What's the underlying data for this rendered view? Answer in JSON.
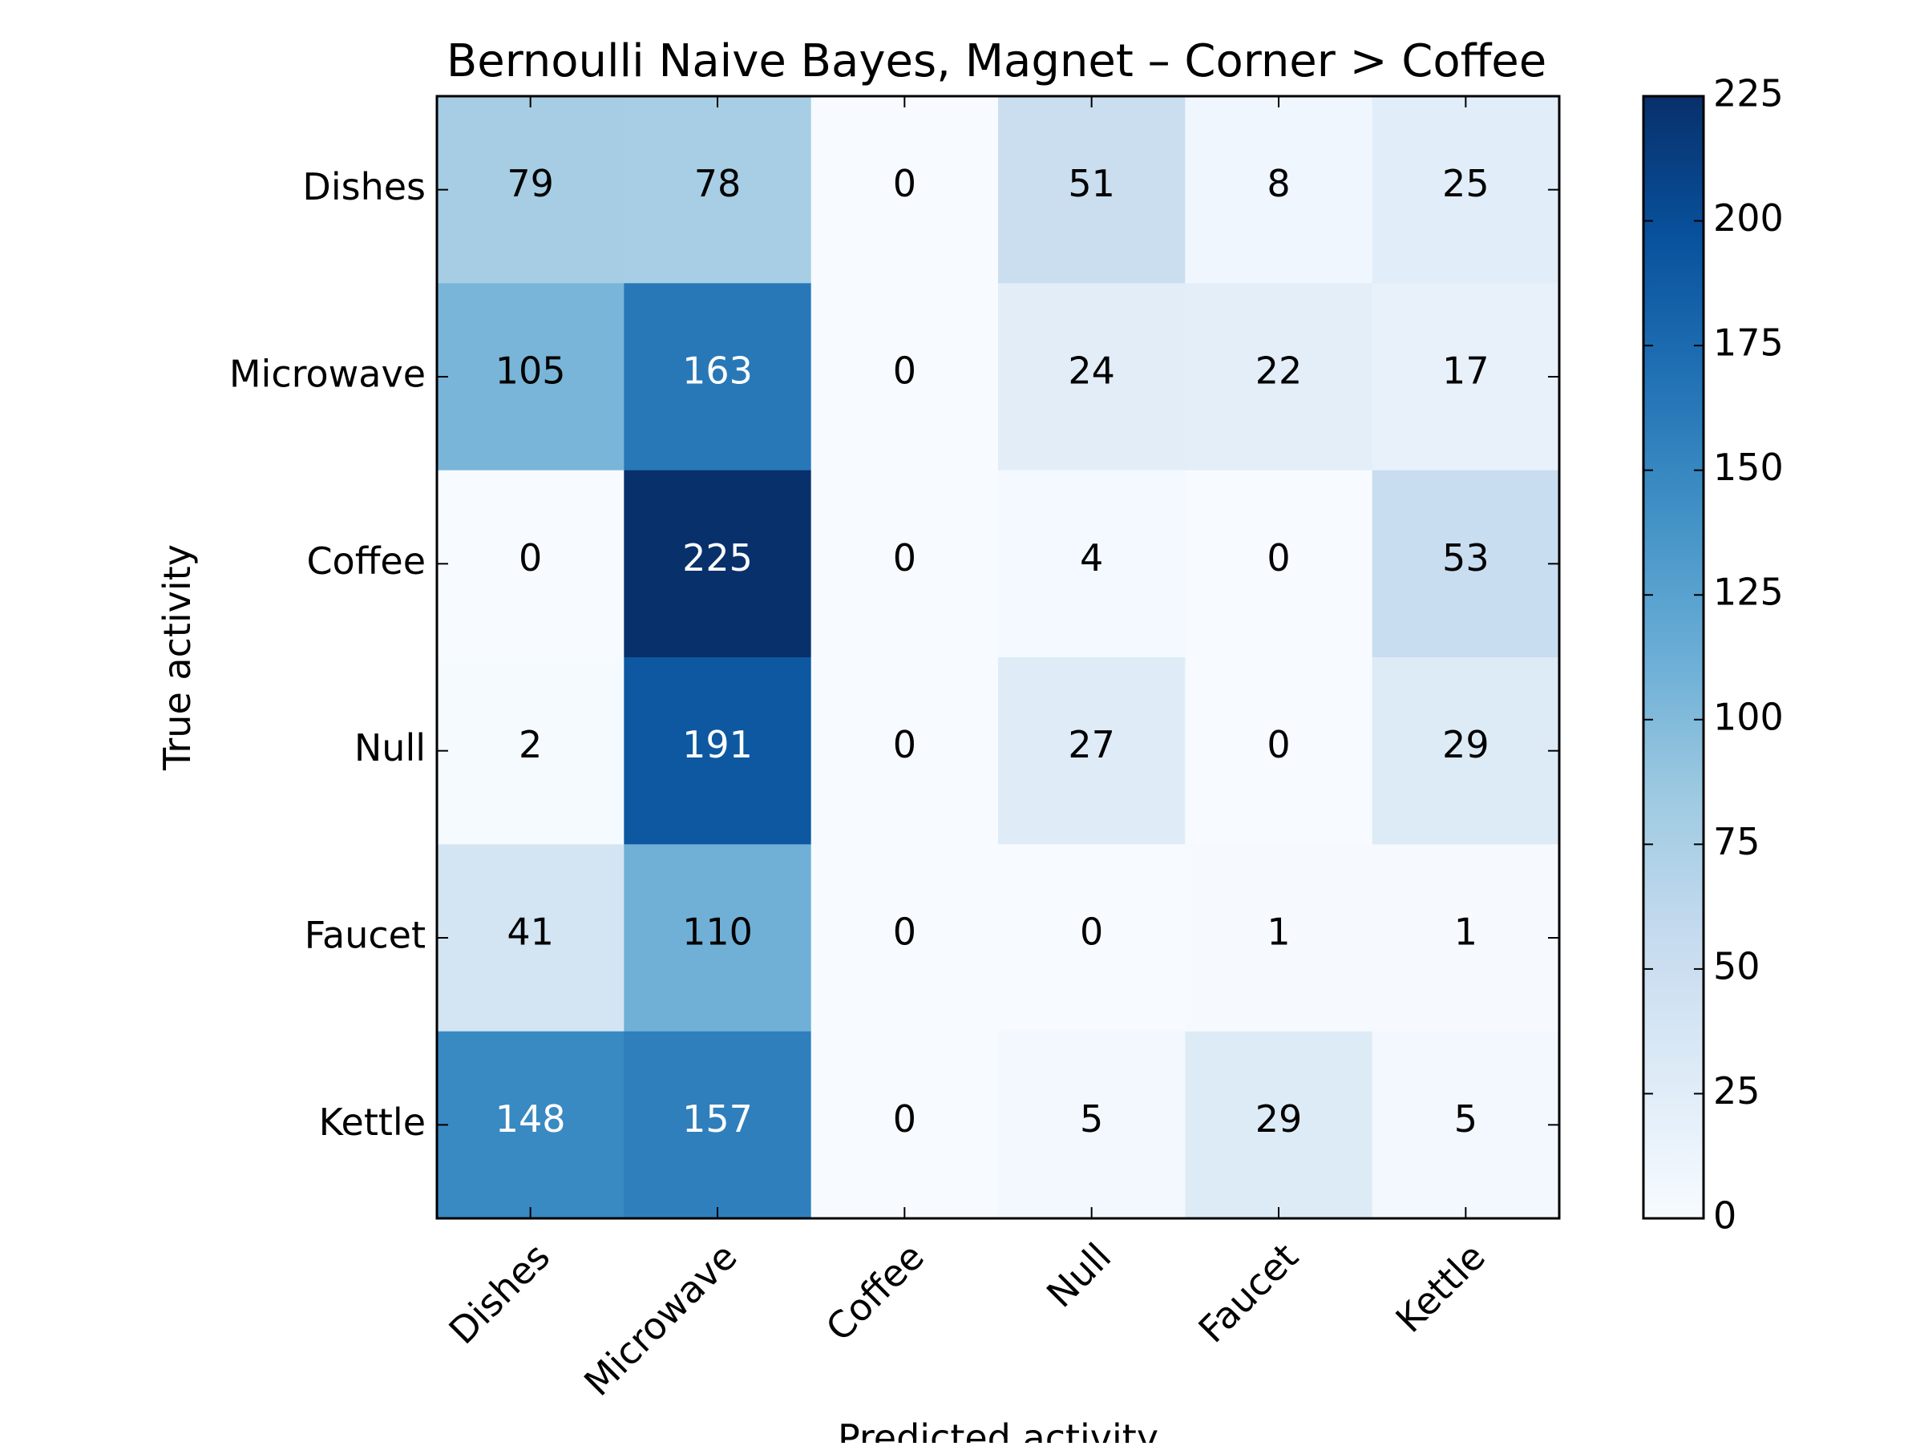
{
  "chart_data": {
    "type": "heatmap",
    "title": "Bernoulli Naive Bayes, Magnet – Corner > Coffee",
    "xlabel": "Predicted activity",
    "ylabel": "True activity",
    "x_categories": [
      "Dishes",
      "Microwave",
      "Coffee",
      "Null",
      "Faucet",
      "Kettle"
    ],
    "y_categories": [
      "Dishes",
      "Microwave",
      "Coffee",
      "Null",
      "Faucet",
      "Kettle"
    ],
    "values": [
      [
        79,
        78,
        0,
        51,
        8,
        25
      ],
      [
        105,
        163,
        0,
        24,
        22,
        17
      ],
      [
        0,
        225,
        0,
        4,
        0,
        53
      ],
      [
        2,
        191,
        0,
        27,
        0,
        29
      ],
      [
        41,
        110,
        0,
        0,
        1,
        1
      ],
      [
        148,
        157,
        0,
        5,
        29,
        5
      ]
    ],
    "colorbar": {
      "range": [
        0,
        225
      ],
      "ticks": [
        0,
        25,
        50,
        75,
        100,
        125,
        150,
        175,
        200,
        225
      ]
    },
    "colormap": [
      "#f7fbff",
      "#deebf7",
      "#c6dbef",
      "#9ecae1",
      "#6baed6",
      "#4292c6",
      "#2171b5",
      "#08519c",
      "#08306b"
    ],
    "grid": false
  }
}
